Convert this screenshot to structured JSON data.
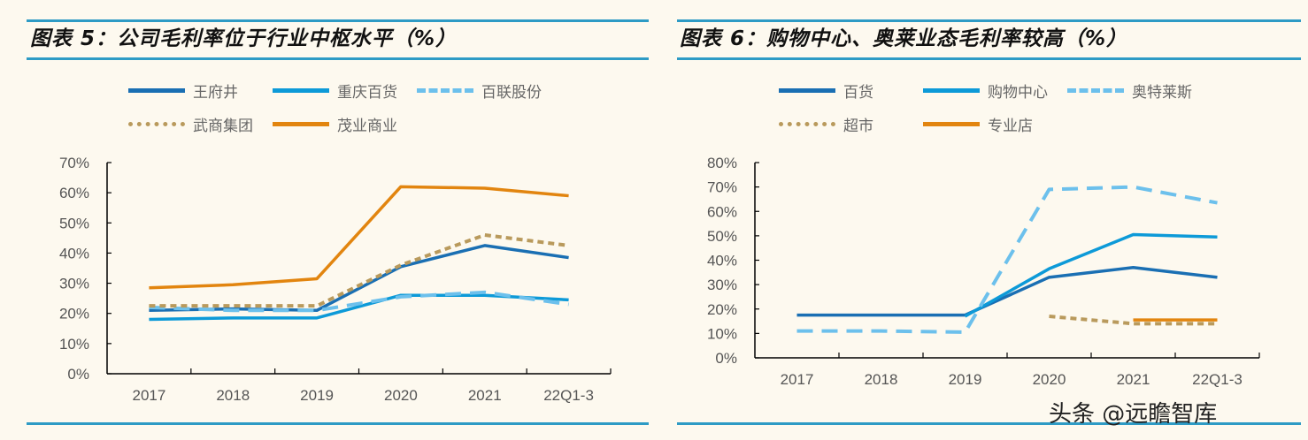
{
  "chart_data": [
    {
      "type": "line",
      "title": "图表 5：公司毛利率位于行业中枢水平（%）",
      "categories": [
        "2017",
        "2018",
        "2019",
        "2020",
        "2021",
        "22Q1-3"
      ],
      "ylim": [
        0,
        70
      ],
      "yticks": [
        "0%",
        "10%",
        "20%",
        "30%",
        "40%",
        "50%",
        "60%",
        "70%"
      ],
      "grid": false,
      "legend_position": "top",
      "series": [
        {
          "name": "王府井",
          "color": "#1a6fb3",
          "style": "solid",
          "values": [
            21,
            21.5,
            21,
            35.5,
            42.5,
            38.5
          ]
        },
        {
          "name": "重庆百货",
          "color": "#0d9ad8",
          "style": "solid",
          "values": [
            18,
            18.5,
            18.5,
            26,
            26,
            24.5
          ]
        },
        {
          "name": "百联股份",
          "color": "#6cc0ec",
          "style": "dashed",
          "values": [
            22,
            21,
            21,
            25.5,
            27,
            23
          ]
        },
        {
          "name": "武商集团",
          "color": "#b99a5c",
          "style": "dotted",
          "values": [
            22.5,
            22.5,
            22.5,
            36,
            46,
            42.5
          ]
        },
        {
          "name": "茂业商业",
          "color": "#e2850f",
          "style": "solid",
          "values": [
            28.5,
            29.5,
            31.5,
            62,
            61.5,
            59
          ]
        }
      ]
    },
    {
      "type": "line",
      "title": "图表 6：购物中心、奥莱业态毛利率较高（%）",
      "categories": [
        "2017",
        "2018",
        "2019",
        "2020",
        "2021",
        "22Q1-3"
      ],
      "ylim": [
        0,
        80
      ],
      "yticks": [
        "0%",
        "10%",
        "20%",
        "30%",
        "40%",
        "50%",
        "60%",
        "70%",
        "80%"
      ],
      "grid": false,
      "legend_position": "top",
      "series": [
        {
          "name": "百货",
          "color": "#1a6fb3",
          "style": "solid",
          "values": [
            17.5,
            17.5,
            17.5,
            33,
            37,
            33
          ]
        },
        {
          "name": "购物中心",
          "color": "#0d9ad8",
          "style": "solid",
          "values": [
            null,
            null,
            17,
            36.5,
            50.5,
            49.5
          ]
        },
        {
          "name": "奥特莱斯",
          "color": "#6cc0ec",
          "style": "dashed",
          "values": [
            11,
            11,
            10.5,
            69,
            70,
            63.5
          ]
        },
        {
          "name": "超市",
          "color": "#b99a5c",
          "style": "dotted",
          "values": [
            null,
            null,
            null,
            17,
            14,
            14
          ]
        },
        {
          "name": "专业店",
          "color": "#e2850f",
          "style": "solid",
          "values": [
            null,
            null,
            null,
            null,
            15.5,
            15.5
          ]
        }
      ]
    }
  ],
  "watermark": "头条 @远瞻智库"
}
